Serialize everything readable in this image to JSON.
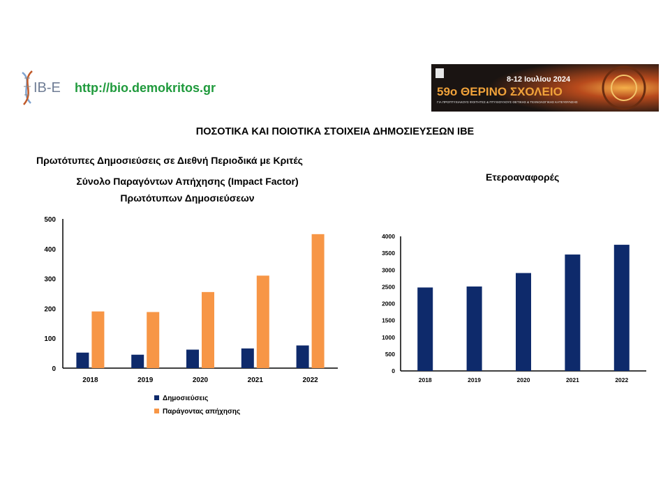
{
  "header": {
    "logo_text": "IB-E",
    "url": "http://bio.demokritos.gr",
    "banner": {
      "date": "8-12 Ιουλίου 2024",
      "title": "59ο ΘΕΡΙΝΟ ΣΧΟΛΕΙΟ",
      "subtitle": "ΓΙΑ ΠΡΟΠΤΥΧΙΑΚΟΥΣ ΦΟΙΤΗΤΕΣ & ΠΤΥΧΙΟΥΧΟΥΣ ΘΕΤΙΚΗΣ & ΤΕΧΝΟΛΟΓΙΚΗΣ ΚΑΤΕΥΘΥΝΣΗΣ"
    }
  },
  "page_title": "ΠΟΣΟΤΙΚΑ ΚΑΙ ΠΟΙΟΤΙΚΑ ΣΤΟΙΧΕΙΑ ΔΗΜΟΣΙΕΥΣΕΩΝ ΙΒΕ",
  "left_heading_1": "Πρωτότυπες Δημοσιεύσεις σε Διεθνή Περιοδικά με Κριτές",
  "left_heading_2": "Σύνολο Παραγόντων Απήχησης (Impact Factor)",
  "left_heading_3": "Πρωτότυπων Δημοσιεύσεων",
  "right_heading": "Ετεροαναφορές",
  "colors": {
    "navy": "#0e2a6b",
    "orange": "#f79646",
    "green": "#1f9a3c"
  },
  "chart_data": [
    {
      "type": "bar",
      "categories": [
        "2018",
        "2019",
        "2020",
        "2021",
        "2022"
      ],
      "series": [
        {
          "name": "Δημοσιεύσεις",
          "values": [
            52,
            45,
            62,
            66,
            76
          ]
        },
        {
          "name": "Παράγοντας απήχησης",
          "values": [
            190,
            188,
            255,
            310,
            449
          ]
        }
      ],
      "ylim": [
        0,
        500
      ],
      "yticks": [
        "0",
        "100",
        "200",
        "300",
        "400",
        "500"
      ],
      "legend": "bottom"
    },
    {
      "type": "bar",
      "categories": [
        "2018",
        "2019",
        "2020",
        "2021",
        "2022"
      ],
      "series": [
        {
          "values": [
            2480,
            2510,
            2910,
            3460,
            3750
          ]
        }
      ],
      "ylim": [
        0,
        4000
      ],
      "yticks": [
        "0",
        "500",
        "1000",
        "1500",
        "2000",
        "2500",
        "3000",
        "3500",
        "4000"
      ]
    }
  ]
}
